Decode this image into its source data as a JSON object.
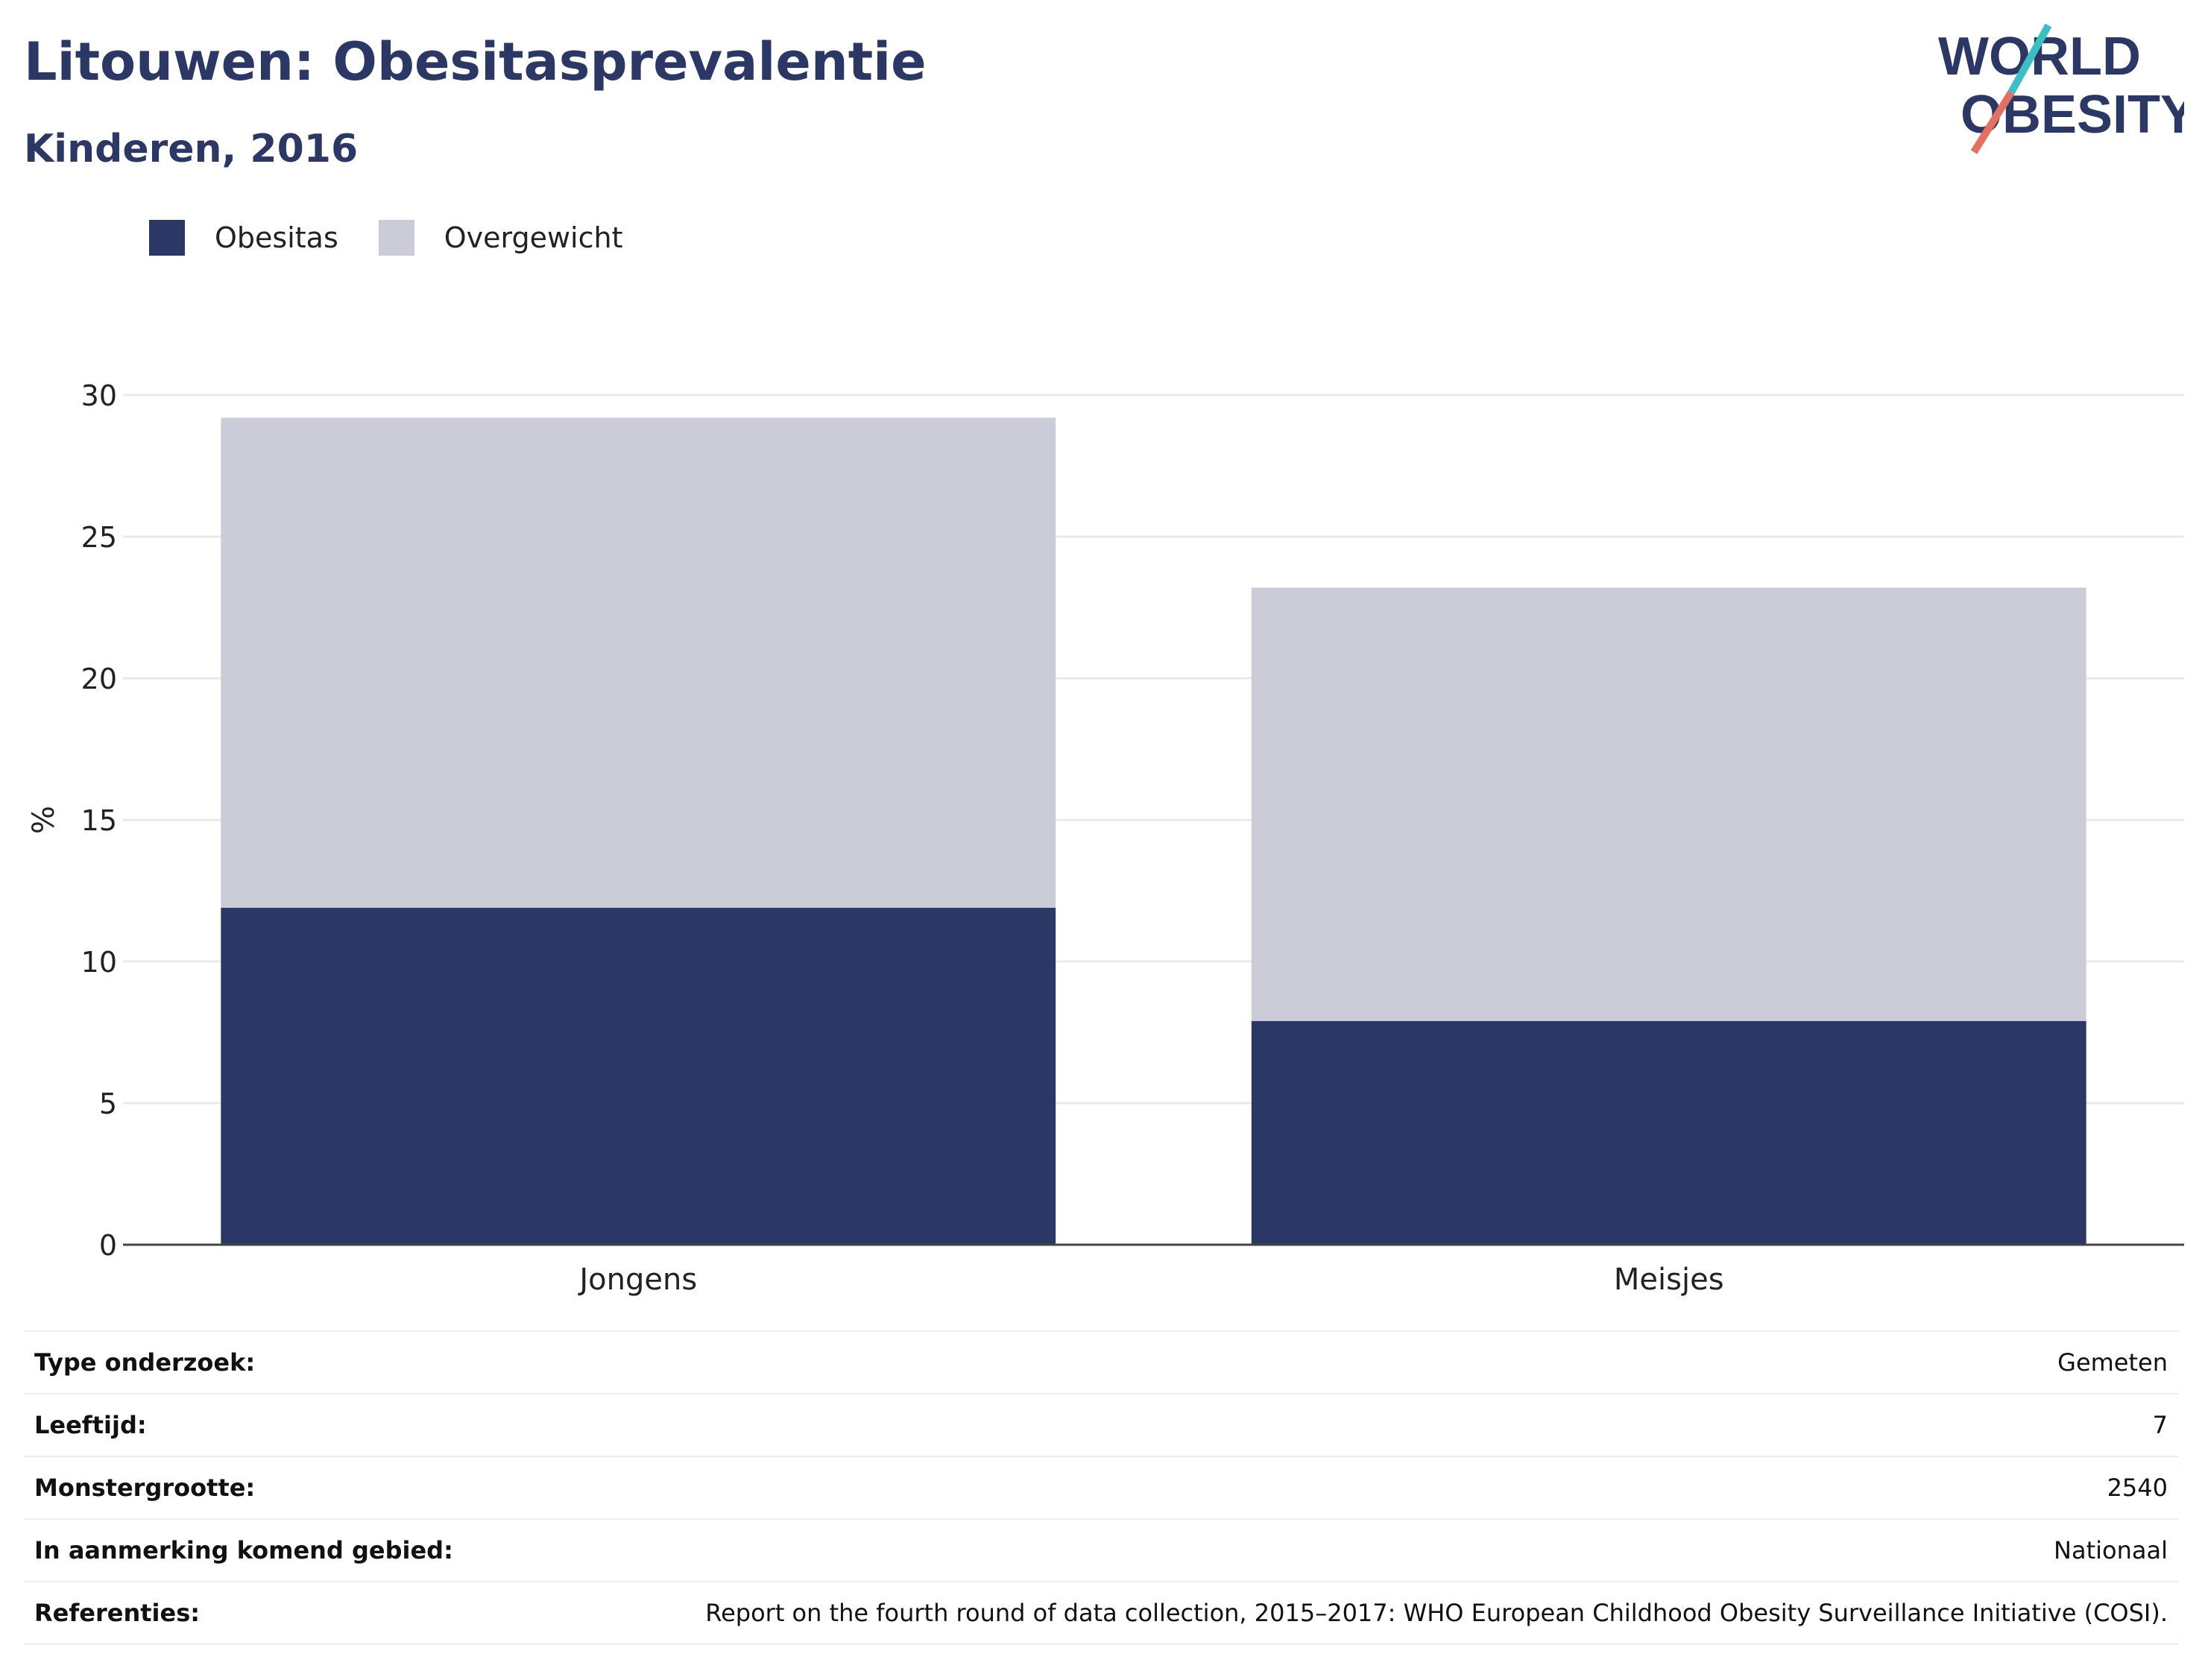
{
  "header": {
    "title": "Litouwen: Obesitasprevalentie",
    "subtitle": "Kinderen, 2016"
  },
  "logo": {
    "line1": "WORLD",
    "line2": "OBESITY"
  },
  "colors": {
    "obesitas": "#2b3764",
    "overgewicht": "#cbccd8",
    "accent_teal": "#3bbfc2",
    "accent_red": "#e4705f"
  },
  "chart_data": {
    "type": "bar",
    "stacked": true,
    "categories": [
      "Jongens",
      "Meisjes"
    ],
    "series": [
      {
        "name": "Obesitas",
        "values": [
          11.9,
          7.9
        ]
      },
      {
        "name": "Overgewicht",
        "values": [
          17.3,
          15.3
        ]
      }
    ],
    "ylabel": "%",
    "ylim": [
      0,
      30
    ],
    "yticks": [
      0,
      5,
      10,
      15,
      20,
      25,
      30
    ],
    "grid": true,
    "legend_position": "top-left"
  },
  "info": [
    {
      "key": "Type onderzoek:",
      "value": "Gemeten"
    },
    {
      "key": "Leeftijd:",
      "value": "7"
    },
    {
      "key": "Monstergrootte:",
      "value": "2540"
    },
    {
      "key": "In aanmerking komend gebied:",
      "value": "Nationaal"
    },
    {
      "key": "Referenties:",
      "value": "Report on the fourth round of data collection, 2015–2017: WHO European Childhood Obesity Surveillance Initiative (COSI)."
    }
  ]
}
